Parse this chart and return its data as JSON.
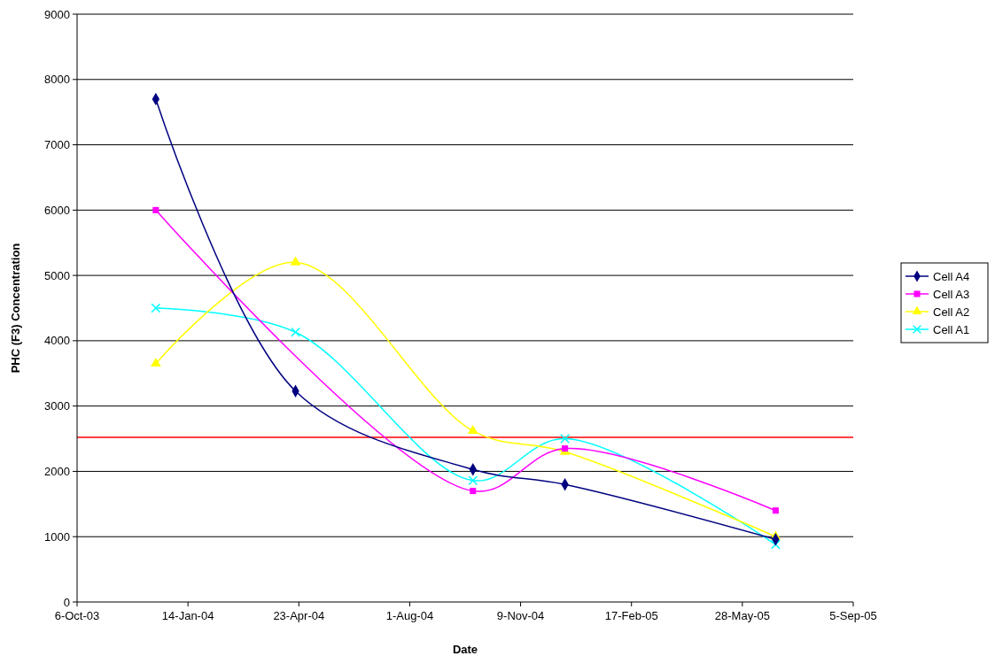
{
  "chart_data": {
    "type": "line",
    "xlabel": "Date",
    "ylabel": "PHC (F3) Concentration",
    "xlim": [
      "2003-10-06",
      "2005-09-05"
    ],
    "xticks": [
      {
        "value": "2003-10-06",
        "label": "6-Oct-03"
      },
      {
        "value": "2004-01-14",
        "label": "14-Jan-04"
      },
      {
        "value": "2004-04-23",
        "label": "23-Apr-04"
      },
      {
        "value": "2004-08-01",
        "label": "1-Aug-04"
      },
      {
        "value": "2004-11-09",
        "label": "9-Nov-04"
      },
      {
        "value": "2005-02-17",
        "label": "17-Feb-05"
      },
      {
        "value": "2005-05-28",
        "label": "28-May-05"
      },
      {
        "value": "2005-09-05",
        "label": "5-Sep-05"
      }
    ],
    "ylim": [
      0,
      9000
    ],
    "yticks": [
      0,
      1000,
      2000,
      3000,
      4000,
      5000,
      6000,
      7000,
      8000,
      9000
    ],
    "grid": "y",
    "legend": "right",
    "series": [
      {
        "name": "Cell A4",
        "color": "#000080",
        "marker": "diamond",
        "x": [
          "2003-12-16",
          "2004-04-20",
          "2004-09-27",
          "2004-12-19",
          "2005-06-27"
        ],
        "values": [
          7700,
          3230,
          2030,
          1800,
          960
        ]
      },
      {
        "name": "Cell A3",
        "color": "#ff00ff",
        "marker": "square",
        "x": [
          "2003-12-16",
          "2004-09-27",
          "2004-12-19",
          "2005-06-27"
        ],
        "values": [
          6000,
          1700,
          2350,
          1400
        ]
      },
      {
        "name": "Cell A2",
        "color": "#ffff00",
        "marker": "triangle",
        "x": [
          "2003-12-16",
          "2004-04-20",
          "2004-09-27",
          "2004-12-19",
          "2005-06-27"
        ],
        "values": [
          3650,
          5200,
          2620,
          2300,
          1000
        ]
      },
      {
        "name": "Cell A1",
        "color": "#00ffff",
        "marker": "cross",
        "x": [
          "2003-12-16",
          "2004-04-20",
          "2004-09-27",
          "2004-12-19",
          "2005-06-27"
        ],
        "values": [
          4500,
          4130,
          1860,
          2500,
          880
        ]
      }
    ],
    "ref_lines": [
      {
        "axis": "y",
        "value": 2520,
        "color": "#ff0000"
      }
    ]
  }
}
